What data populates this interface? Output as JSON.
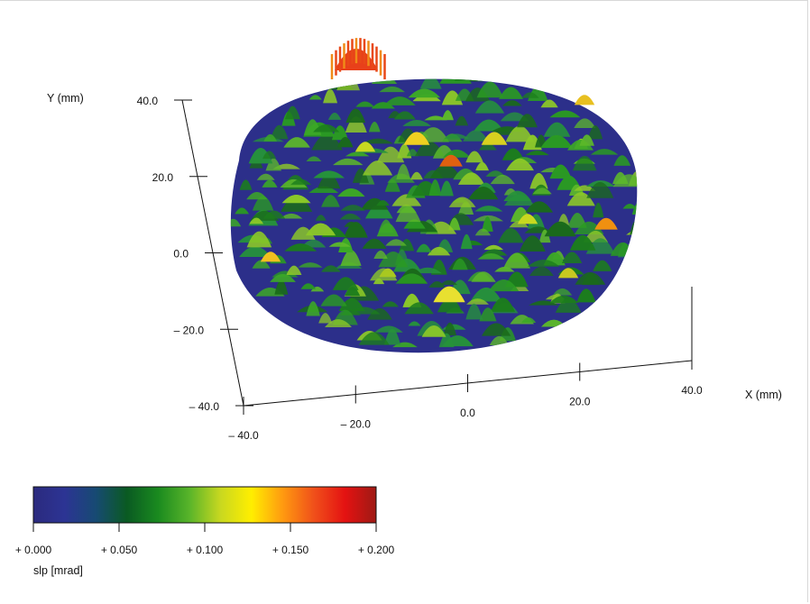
{
  "chart_data": {
    "type": "surface-3d",
    "x_axis": {
      "label": "X (mm)",
      "ticks": [
        "– 40.0",
        "– 20.0",
        "0.0",
        "20.0",
        "40.0"
      ],
      "range": [
        -40,
        40
      ]
    },
    "y_axis": {
      "label": "Y (mm)",
      "ticks": [
        "– 40.0",
        "– 20.0",
        "0.0",
        "20.0",
        "40.0"
      ],
      "range": [
        -40,
        40
      ]
    },
    "z_range": [
      0.0,
      0.2
    ],
    "colorbar": {
      "label": "slp [mrad]",
      "ticks": [
        "+ 0.000",
        "+ 0.050",
        "+ 0.100",
        "+ 0.150",
        "+ 0.200"
      ],
      "range": [
        0.0,
        0.2
      ],
      "colors": [
        "#2b2a7e",
        "#2c3494",
        "#174a73",
        "#0a5a22",
        "#1a8a1f",
        "#58b42a",
        "#c8d820",
        "#ffee00",
        "#ff9a10",
        "#f0501a",
        "#e41212",
        "#9e1a14"
      ]
    },
    "surface": {
      "shape": "circular aperture",
      "base_color": "#2c2f8a",
      "peak_color": "#e8401a"
    }
  }
}
